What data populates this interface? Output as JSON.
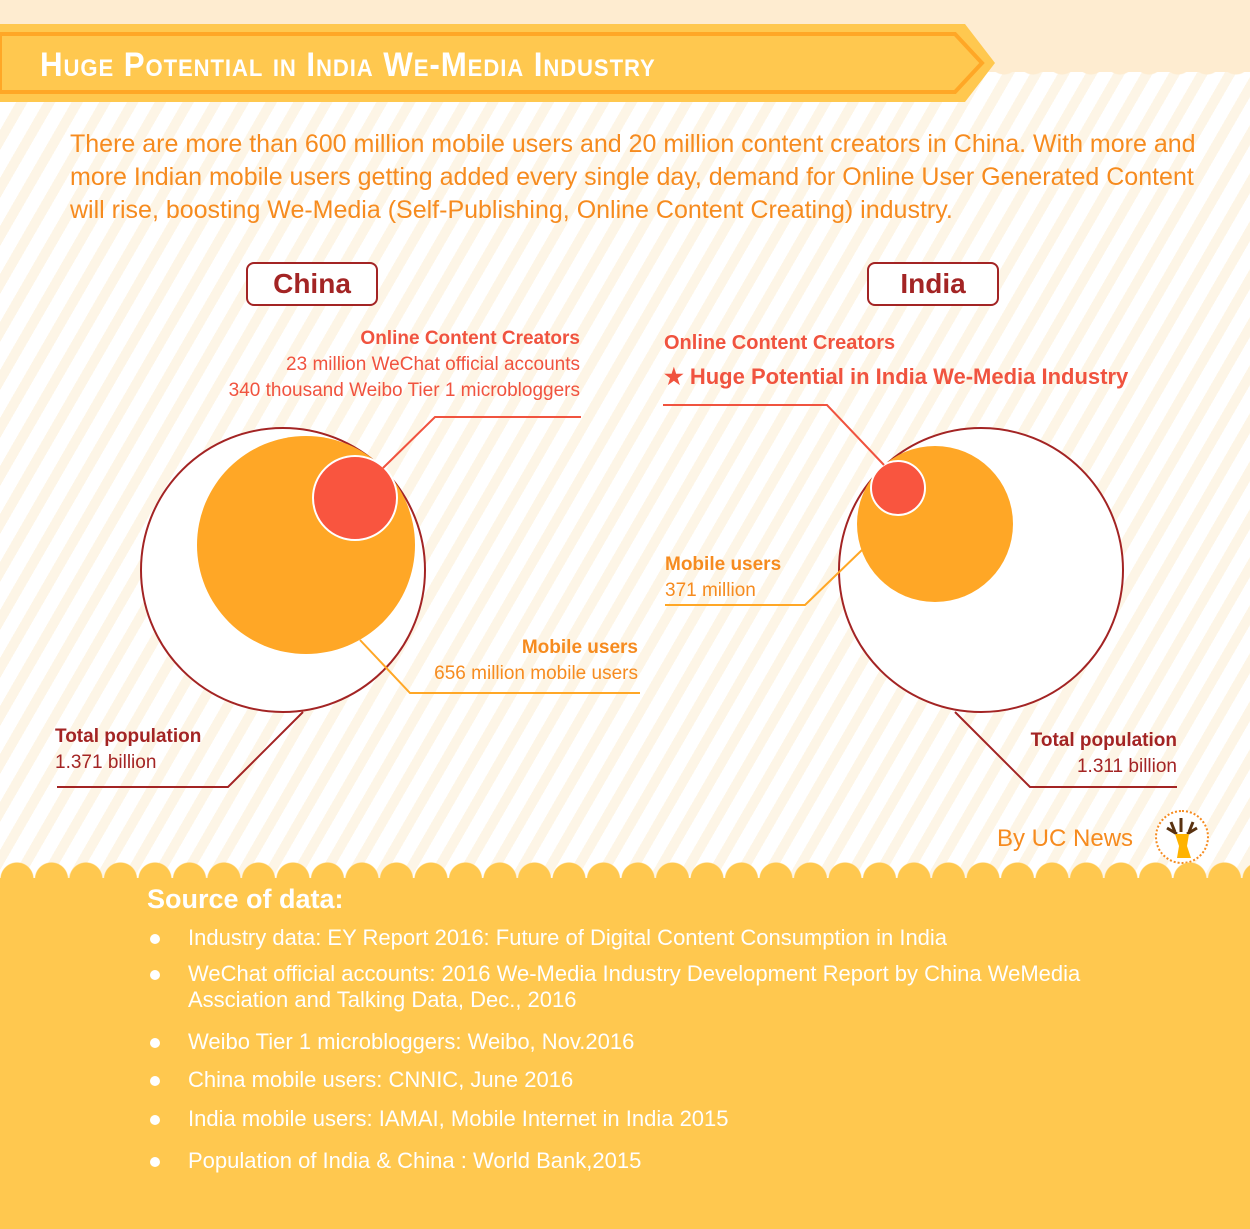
{
  "header": {
    "title": "Huge Potential in India We-Media Industry"
  },
  "intro": "There are more than 600 million mobile users and 20 million content creators in China. With more and more Indian mobile users getting added every single day, demand for Online User Generated Content will rise, boosting We-Media (Self-Publishing, Online Content Creating) industry.",
  "china": {
    "label": "China",
    "creators_title": "Online Content Creators",
    "creators_line1": "23 million WeChat official accounts",
    "creators_line2": "340 thousand Weibo Tier 1 microbloggers",
    "mobile_title": "Mobile users",
    "mobile_value": "656 million mobile users",
    "pop_title": "Total population",
    "pop_value": "1.371 billion"
  },
  "india": {
    "label": "India",
    "creators_title": "Online Content Creators",
    "creators_line1": "Huge Potential in India We-Media Industry",
    "creators_icon": "star-icon",
    "mobile_title": "Mobile users",
    "mobile_value": "371 million",
    "pop_title": "Total population",
    "pop_value": "1.311 billion"
  },
  "credit": {
    "text": "By UC News",
    "logo": "deer-head-logo"
  },
  "sources": {
    "title": "Source of data:",
    "items": [
      "Industry data: EY Report 2016: Future of Digital Content Consumption in India",
      "WeChat official accounts: 2016 We-Media Industry Development Report by China WeMedia Assciation and Talking Data, Dec., 2016",
      "Weibo Tier 1 microbloggers: Weibo, Nov.2016",
      "China mobile users: CNNIC, June 2016",
      "India mobile users:  IAMAI,  Mobile Internet in India 2015",
      "Population of India & China : World Bank,2015"
    ]
  },
  "colors": {
    "orange": "#f68b1f",
    "red": "#f0533f",
    "dark_red": "#a32424",
    "circle_orange": "#ffa726",
    "band": "#ffc84f"
  }
}
